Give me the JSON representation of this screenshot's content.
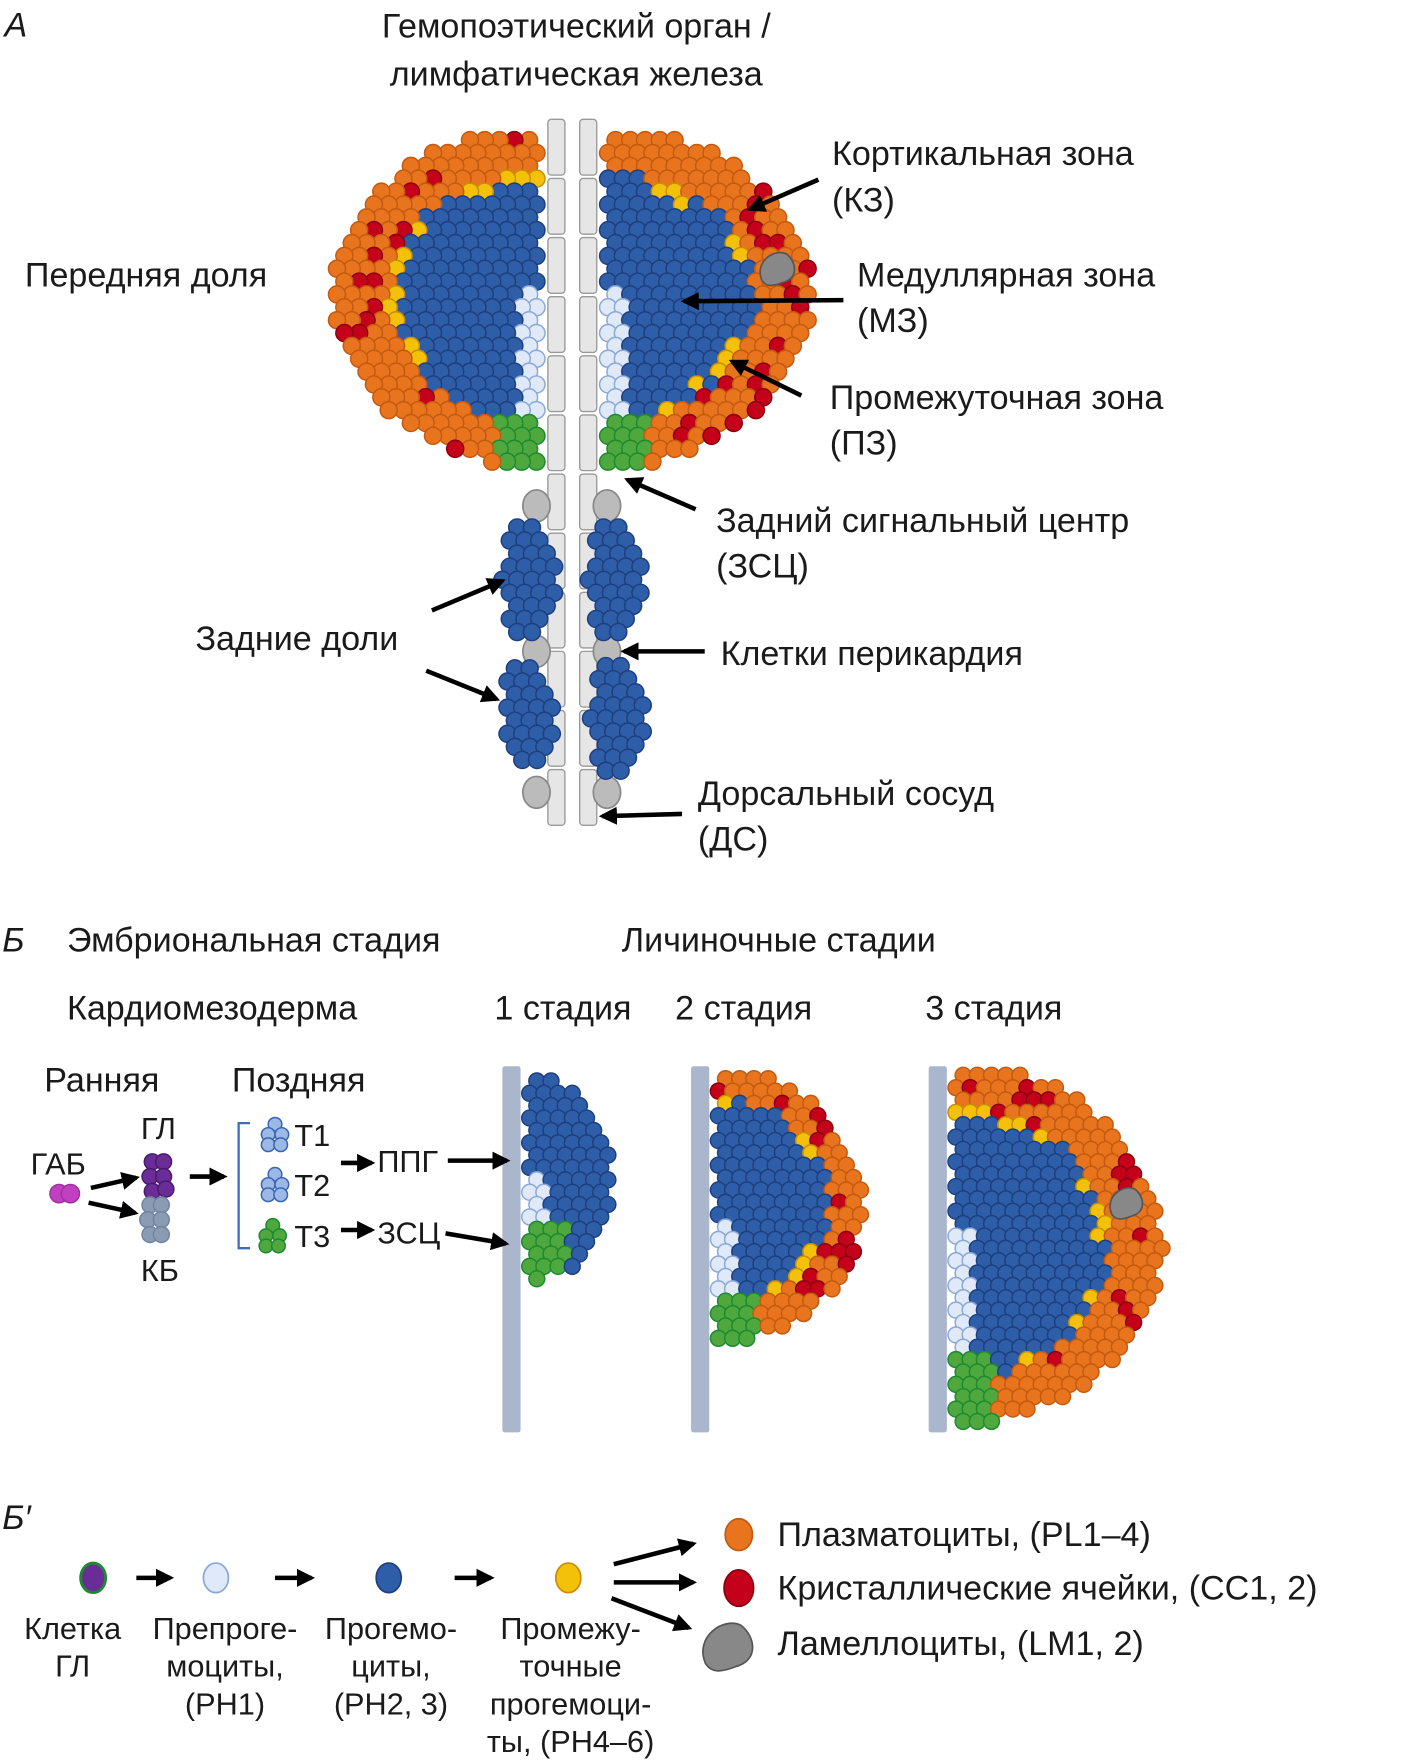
{
  "panel_a": {
    "letter": "А",
    "title_line1": "Гемопоэтический орган /",
    "title_line2": "лимфатическая железа",
    "anterior_lobe": "Передняя доля",
    "cortical_zone": "Кортикальная зона",
    "cortical_zone_abbr": "(КЗ)",
    "medullary_zone": "Медуллярная зона",
    "medullary_zone_abbr": "(МЗ)",
    "intermediate_zone": "Промежуточная зона",
    "intermediate_zone_abbr": "(ПЗ)",
    "psc": "Задний сигнальный центр",
    "psc_abbr": "(ЗСЦ)",
    "posterior_lobes": "Задние доли",
    "pericardial_cells": "Клетки перикардия",
    "dorsal_vessel": "Дорсальный сосуд",
    "dorsal_vessel_abbr": "(ДС)"
  },
  "panel_b": {
    "letter": "Б",
    "embryonic": "Эмбриональная стадия",
    "larval": "Личиночные стадии",
    "cardiomesoderm": "Кардиомезодерма",
    "stage1": "1 стадия",
    "stage2": "2 стадия",
    "stage3": "3 стадия",
    "early": "Ранняя",
    "late": "Поздняя",
    "gl": "ГЛ",
    "gab": "ГАБ",
    "kb": "КБ",
    "t1": "Т1",
    "t2": "Т2",
    "t3": "Т3",
    "ppg": "ППГ",
    "zsc": "ЗСЦ"
  },
  "panel_b2": {
    "letter": "Б′",
    "lineage": [
      {
        "lines": [
          "Клетка",
          "ГЛ"
        ]
      },
      {
        "lines": [
          "Препроге-",
          "моциты,",
          "(PH1)"
        ]
      },
      {
        "lines": [
          "Прогемо-",
          "циты,",
          "(PH2, 3)"
        ]
      },
      {
        "lines": [
          "Промежу-",
          "точные",
          "прогемоци-",
          "ты, (PH4–6)"
        ]
      }
    ],
    "outcomes": [
      "Плазматоциты, (PL1–4)",
      "Кристаллические ячейки, (CC1, 2)",
      "Ламеллоциты, (LM1, 2)"
    ]
  },
  "colors": {
    "medullary_blue": "#2f5ea8",
    "cortical_orange": "#e8741e",
    "crystal_red": "#c4001a",
    "intermediate_yellow": "#f3c10a",
    "preprogenitor_light": "#dfe9f8",
    "psc_green": "#4ea83e",
    "lamellocyte_gray": "#888888",
    "vessel_gray": "#a9b6cc",
    "gl_purple": "#6a2c96",
    "gab_magenta": "#c040c0",
    "kb_gray": "#8a9cb4"
  }
}
